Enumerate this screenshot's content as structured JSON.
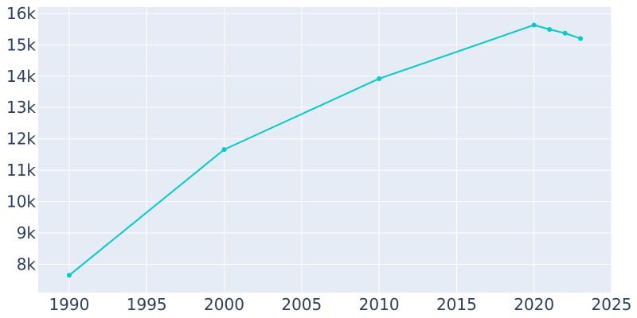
{
  "chart_data": {
    "type": "line",
    "title": "",
    "xlabel": "",
    "ylabel": "",
    "xlim": [
      1988,
      2025
    ],
    "ylim": [
      7100,
      16200
    ],
    "x_ticks": [
      1990,
      1995,
      2000,
      2005,
      2010,
      2015,
      2020,
      2025
    ],
    "x_tick_labels": [
      "1990",
      "1995",
      "2000",
      "2005",
      "2010",
      "2015",
      "2020",
      "2025"
    ],
    "y_ticks": [
      8000,
      9000,
      10000,
      11000,
      12000,
      13000,
      14000,
      15000,
      16000
    ],
    "y_tick_labels": [
      "8k",
      "9k",
      "10k",
      "11k",
      "12k",
      "13k",
      "14k",
      "15k",
      "16k"
    ],
    "grid": true,
    "legend": "none",
    "colors": {
      "line": "#00cccc",
      "plot_background": "#e5ecf6",
      "grid": "#ffffff",
      "text": "#2a3f5f"
    },
    "series": [
      {
        "x": [
          1990,
          2000,
          2010,
          2020,
          2021,
          2022,
          2023
        ],
        "y": [
          7650,
          11660,
          13920,
          15630,
          15490,
          15370,
          15200
        ]
      }
    ]
  }
}
